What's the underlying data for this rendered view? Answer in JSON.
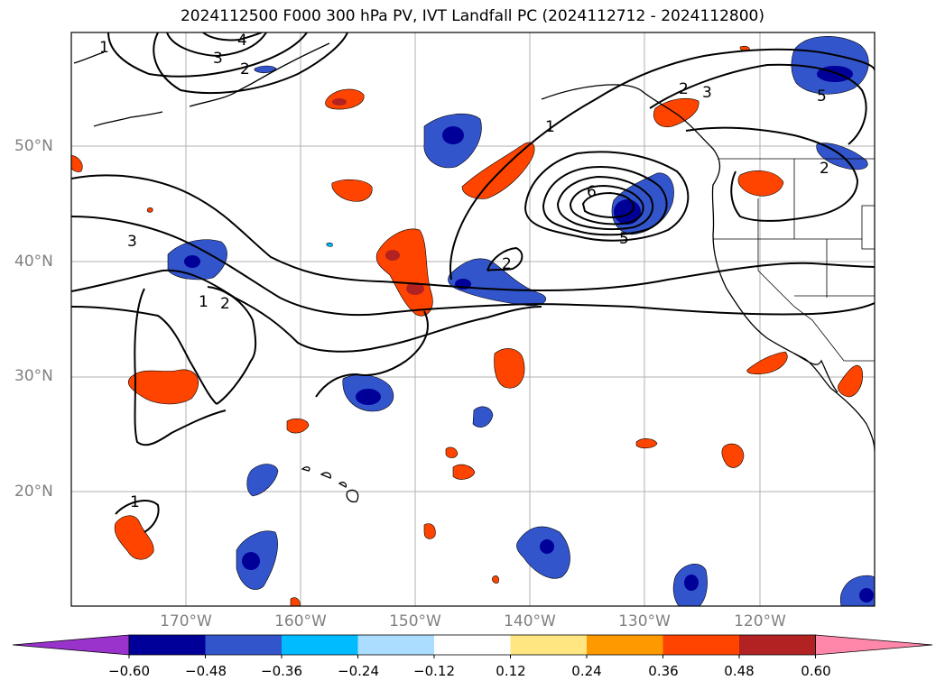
{
  "title": "2024112500 F000 300 hPa PV, IVT Landfall PC (2024112712 - 2024112800)",
  "lat_labels": [
    {
      "value": 50,
      "text": "50°N"
    },
    {
      "value": 40,
      "text": "40°N"
    },
    {
      "value": 30,
      "text": "30°N"
    },
    {
      "value": 20,
      "text": "20°N"
    }
  ],
  "lon_labels": [
    {
      "value": -170,
      "text": "170°W"
    },
    {
      "value": -160,
      "text": "160°W"
    },
    {
      "value": -150,
      "text": "150°W"
    },
    {
      "value": -140,
      "text": "140°W"
    },
    {
      "value": -130,
      "text": "130°W"
    },
    {
      "value": -120,
      "text": "120°W"
    }
  ],
  "colorbar": {
    "colors": [
      "#9933cc",
      "#000099",
      "#3355cc",
      "#00bbff",
      "#aaddff",
      "#ffffff",
      "#ffe680",
      "#ff9900",
      "#ff4400",
      "#b22222",
      "#ff88aa"
    ],
    "ticks": [
      "−0.60",
      "−0.48",
      "−0.36",
      "−0.24",
      "−0.12",
      "0.12",
      "0.24",
      "0.36",
      "0.48",
      "0.60"
    ]
  },
  "contour_labels": [
    "1",
    "2",
    "3",
    "4",
    "5",
    "6"
  ]
}
